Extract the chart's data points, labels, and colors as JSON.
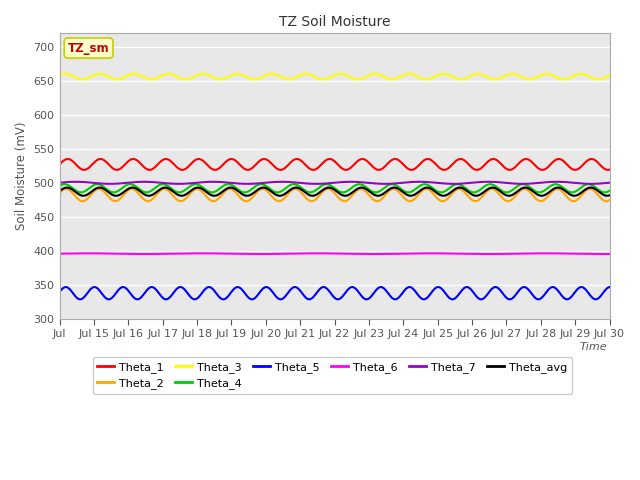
{
  "title": "TZ Soil Moisture",
  "xlabel": "Time",
  "ylabel": "Soil Moisture (mV)",
  "ylim": [
    300,
    720
  ],
  "yticks": [
    300,
    350,
    400,
    450,
    500,
    550,
    600,
    650,
    700
  ],
  "x_start": 14,
  "x_end": 30,
  "xtick_positions": [
    14,
    15,
    16,
    17,
    18,
    19,
    20,
    21,
    22,
    23,
    24,
    25,
    26,
    27,
    28,
    29,
    30
  ],
  "xtick_labels": [
    "Jul",
    "Jul 15",
    "Jul 16",
    "Jul 17",
    "Jul 18",
    "Jul 19",
    "Jul 20",
    "Jul 21",
    "Jul 22",
    "Jul 23",
    "Jul 24",
    "Jul 25",
    "Jul 26",
    "Jul 27",
    "Jul 28",
    "Jul 29",
    "Jul 30"
  ],
  "series_order": [
    "Theta_1",
    "Theta_2",
    "Theta_3",
    "Theta_4",
    "Theta_5",
    "Theta_6",
    "Theta_7",
    "Theta_avg"
  ],
  "series": {
    "Theta_1": {
      "color": "#ff0000",
      "base": 527,
      "amp": 8,
      "freq": 1.05,
      "phase": 0.0
    },
    "Theta_2": {
      "color": "#ffa500",
      "base": 482,
      "amp": 9,
      "freq": 1.05,
      "phase": 0.3
    },
    "Theta_3": {
      "color": "#ffff00",
      "base": 656,
      "amp": 4,
      "freq": 1.0,
      "phase": 0.5
    },
    "Theta_4": {
      "color": "#00cc00",
      "base": 492,
      "amp": 6,
      "freq": 1.05,
      "phase": 0.6
    },
    "Theta_5": {
      "color": "#0000ff",
      "base": 338,
      "amp": 9,
      "freq": 1.2,
      "phase": 0.2
    },
    "Theta_6": {
      "color": "#ff00ff",
      "base": 396,
      "amp": 0.5,
      "freq": 0.3,
      "phase": 0.0
    },
    "Theta_7": {
      "color": "#9900cc",
      "base": 500,
      "amp": 1.5,
      "freq": 0.5,
      "phase": 0.1
    },
    "Theta_avg": {
      "color": "#000000",
      "base": 487,
      "amp": 6,
      "freq": 1.05,
      "phase": 0.15
    }
  },
  "legend_label": "TZ_sm",
  "legend_box_facecolor": "#ffffcc",
  "legend_box_edgecolor": "#cccc00",
  "legend_box_text_color": "#cc0000",
  "plot_bg_color": "#e8e8e8",
  "fig_bg_color": "#ffffff",
  "grid_color": "#ffffff",
  "title_color": "#333333",
  "axis_label_color": "#555555",
  "tick_color": "#555555"
}
